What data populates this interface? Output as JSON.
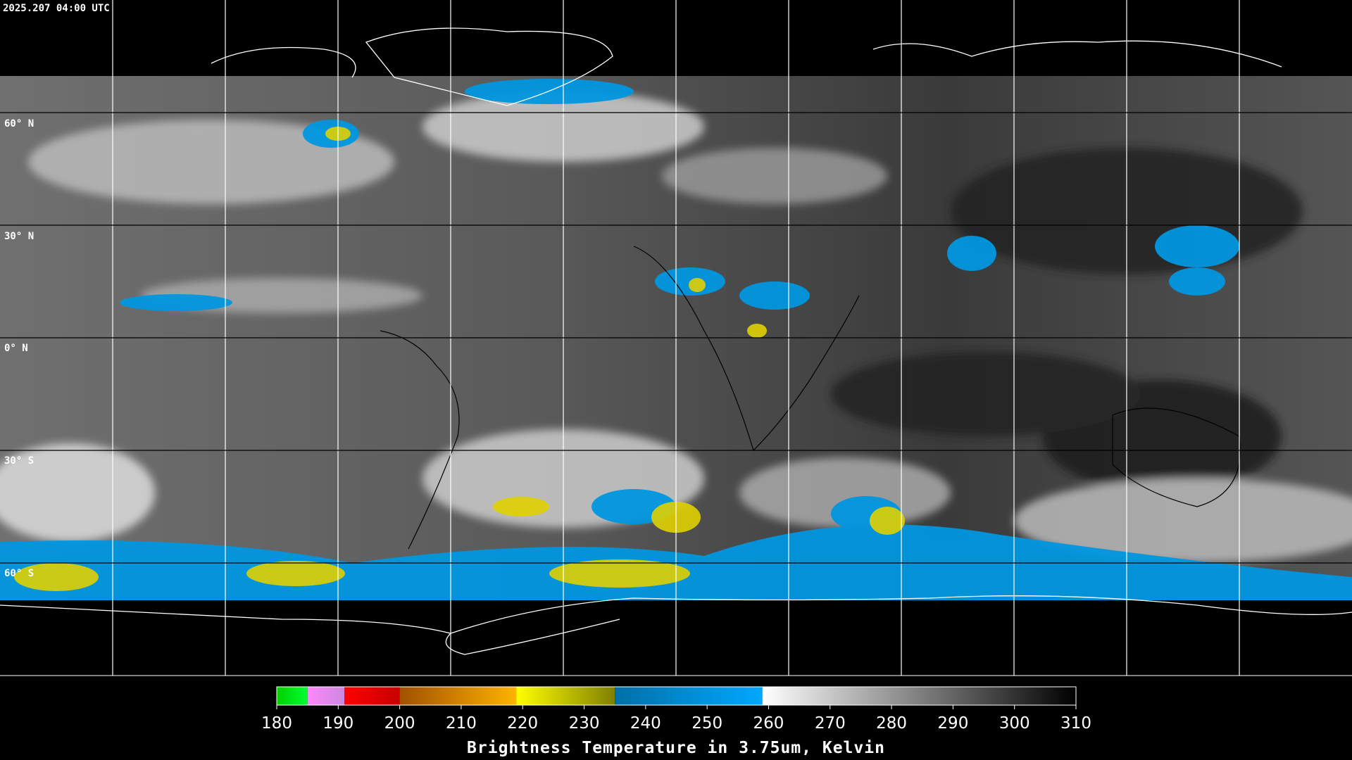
{
  "header": {
    "timestamp": "2025.207 04:00 UTC"
  },
  "map": {
    "lat_labels": [
      "60° N",
      "30° N",
      "0° N",
      "30° S",
      "60° S"
    ]
  },
  "colorbar": {
    "range": [
      180,
      310
    ],
    "ticks": [
      180,
      190,
      200,
      210,
      220,
      230,
      240,
      250,
      260,
      270,
      280,
      290,
      300,
      310
    ],
    "segments": [
      {
        "from": 180,
        "to": 185,
        "colors": [
          "#00d000",
          "#00ff30"
        ]
      },
      {
        "from": 185,
        "to": 191,
        "colors": [
          "#ff88ff",
          "#cc88dd"
        ]
      },
      {
        "from": 191,
        "to": 200,
        "colors": [
          "#ff0000",
          "#c80000"
        ]
      },
      {
        "from": 200,
        "to": 219,
        "colors": [
          "#a05000",
          "#ffb400"
        ]
      },
      {
        "from": 219,
        "to": 235,
        "colors": [
          "#ffff00",
          "#808000"
        ]
      },
      {
        "from": 235,
        "to": 259,
        "colors": [
          "#0070a8",
          "#00a8ff"
        ]
      },
      {
        "from": 259,
        "to": 310,
        "colors": [
          "#ffffff",
          "#000000"
        ]
      }
    ],
    "title": "Brightness Temperature in 3.75um, Kelvin"
  }
}
